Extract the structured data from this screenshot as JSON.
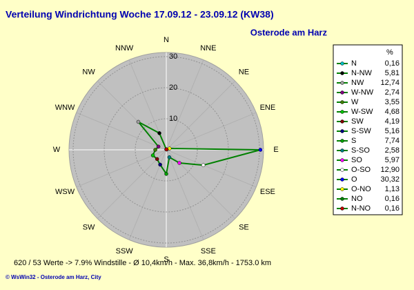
{
  "chart_data": {
    "type": "radar",
    "title": "Verteilung Windrichtung   Woche 17.09.12 - 23.09.12 (KW38)",
    "subtitle": "Osterode am Harz",
    "angle_labels": [
      "N",
      "NNE",
      "NE",
      "ENE",
      "E",
      "ESE",
      "SE",
      "SSE",
      "S",
      "SSW",
      "SW",
      "WSW",
      "W",
      "WNW",
      "NW",
      "NNW"
    ],
    "rlim": [
      0,
      30
    ],
    "rticks": [
      10,
      20,
      30
    ],
    "legend_header": "%",
    "categories": [
      "N",
      "N-NW",
      "NW",
      "W-NW",
      "W",
      "W-SW",
      "SW",
      "S-SW",
      "S",
      "S-SO",
      "SO",
      "O-SO",
      "O",
      "O-NO",
      "NO",
      "N-NO"
    ],
    "values": [
      0.16,
      5.81,
      12.74,
      2.74,
      3.55,
      4.68,
      4.19,
      5.16,
      7.74,
      2.58,
      5.97,
      12.9,
      30.32,
      1.13,
      0.16,
      0.16
    ],
    "value_labels": [
      "0,16",
      "5,81",
      "12,74",
      "2,74",
      "3,55",
      "4,68",
      "4,19",
      "5,16",
      "7,74",
      "2,58",
      "5,97",
      "12,90",
      "30,32",
      "1,13",
      "0,16",
      "0,16"
    ],
    "colors": [
      "#00c0c0",
      "#000000",
      "#a0a0a0",
      "#800080",
      "#408000",
      "#00c000",
      "#800000",
      "#000080",
      "#00a000",
      "#008080",
      "#ff00ff",
      "#ffffff",
      "#0000ff",
      "#ffff00",
      "#008000",
      "#c00000"
    ],
    "line_color": "#008000",
    "footer": "620 / 53 Werte  -> 7.9% Windstille   -   Ø 10,4km/h   -  Max. 36,8km/h   -    1753.0 km",
    "credit": "© WsWin32  -  Osterode am Harz, City"
  }
}
